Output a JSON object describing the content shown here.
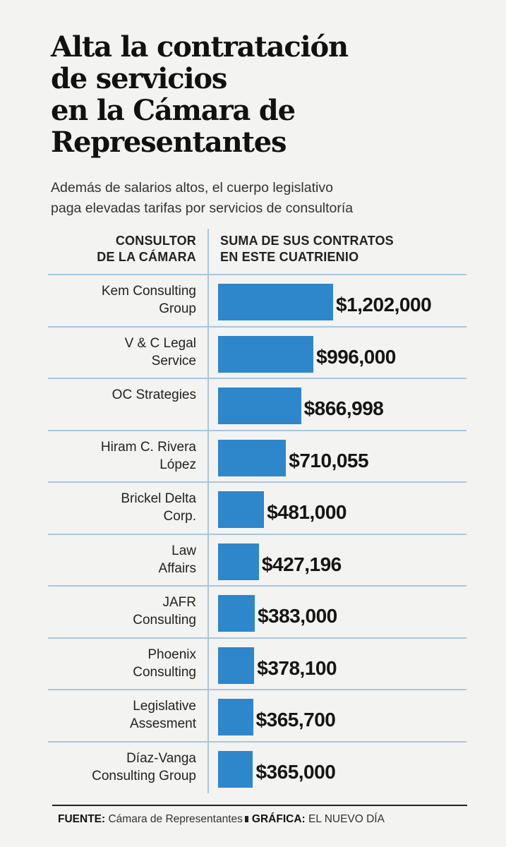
{
  "title_lines": [
    "Alta la contratación",
    "de servicios",
    "en la Cámara de",
    "Representantes"
  ],
  "subtitle_lines": [
    "Además de salarios altos, el cuerpo legislativo",
    "paga elevadas tarifas por servicios de consultoría"
  ],
  "colors": {
    "bar": "#2e86cb",
    "rule": "#a9c7de"
  },
  "chart_data": {
    "type": "bar",
    "orientation": "horizontal",
    "title": "Alta la contratación de servicios en la Cámara de Representantes",
    "subtitle": "Además de salarios altos, el cuerpo legislativo paga elevadas tarifas por servicios de consultoría",
    "column_headers": {
      "left": [
        "CONSULTOR",
        "DE LA CÁMARA"
      ],
      "right": [
        "SUMA DE SUS CONTRATOS",
        "EN ESTE CUATRIENIO"
      ]
    },
    "categories": [
      [
        "Kem Consulting",
        "Group"
      ],
      [
        "V & C Legal",
        "Service"
      ],
      [
        "OC Strategies"
      ],
      [
        "Hiram C. Rivera",
        "López"
      ],
      [
        "Brickel Delta",
        "Corp."
      ],
      [
        "Law",
        "Affairs"
      ],
      [
        "JAFR",
        "Consulting"
      ],
      [
        "Phoenix",
        "Consulting"
      ],
      [
        "Legislative",
        "Assesment"
      ],
      [
        "Díaz-Vanga",
        "Consulting Group"
      ]
    ],
    "values": [
      1202000,
      996000,
      866998,
      710055,
      481000,
      427196,
      383000,
      378100,
      365700,
      365000
    ],
    "value_labels": [
      "$1,202,000",
      "$996,000",
      "$866,998",
      "$710,055",
      "$481,000",
      "$427,196",
      "$383,000",
      "$378,100",
      "$365,700",
      "$365,000"
    ],
    "grid": false
  },
  "footer": {
    "source_label": "FUENTE:",
    "source": "Cámara de Representantes",
    "graphic_label": "GRÁFICA:",
    "graphic": "EL NUEVO DÍA"
  }
}
